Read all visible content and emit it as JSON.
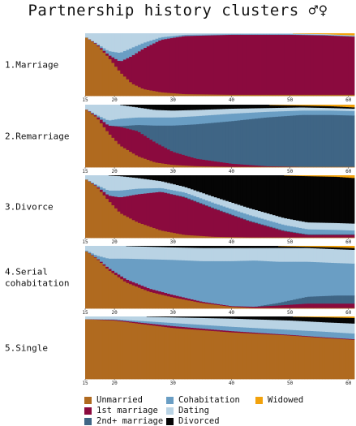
{
  "title": "Partnership history clusters ♂♀",
  "colors": {
    "unmarried": "#b06a1f",
    "first_marriage": "#8b0a3e",
    "second_marriage": "#3f6585",
    "cohabitation": "#6a9ec4",
    "dating": "#b9d3e4",
    "divorced": "#050505",
    "widowed": "#f2a20c"
  },
  "legend": [
    {
      "key": "unmarried",
      "label": "Unmarried"
    },
    {
      "key": "cohabitation",
      "label": "Cohabitation"
    },
    {
      "key": "widowed",
      "label": "Widowed"
    },
    {
      "key": "first_marriage",
      "label": "1st marriage"
    },
    {
      "key": "dating",
      "label": "Dating"
    },
    {
      "key": "second_marriage",
      "label": "2nd+ marriage"
    },
    {
      "key": "divorced",
      "label": "Divorced"
    }
  ],
  "chart_data": {
    "type": "area",
    "subtype": "stacked-proportion",
    "x_range": [
      15,
      61
    ],
    "x_ticks": [
      15,
      20,
      30,
      40,
      50,
      60
    ],
    "y_range": [
      0,
      1
    ],
    "stack_order": [
      "unmarried",
      "first_marriage",
      "second_marriage",
      "cohabitation",
      "dating",
      "divorced",
      "widowed"
    ],
    "panels": [
      {
        "label": "1.Marriage",
        "points": [
          {
            "age": 15,
            "unmarried": 0.95,
            "first_marriage": 0.0,
            "second_marriage": 0.0,
            "cohabitation": 0.0,
            "dating": 0.05,
            "divorced": 0.0,
            "widowed": 0.0
          },
          {
            "age": 17,
            "unmarried": 0.82,
            "first_marriage": 0.01,
            "second_marriage": 0.0,
            "cohabitation": 0.01,
            "dating": 0.16,
            "divorced": 0.0,
            "widowed": 0.0
          },
          {
            "age": 19,
            "unmarried": 0.62,
            "first_marriage": 0.04,
            "second_marriage": 0.0,
            "cohabitation": 0.06,
            "dating": 0.28,
            "divorced": 0.0,
            "widowed": 0.0
          },
          {
            "age": 21,
            "unmarried": 0.38,
            "first_marriage": 0.17,
            "second_marriage": 0.0,
            "cohabitation": 0.14,
            "dating": 0.31,
            "divorced": 0.0,
            "widowed": 0.0
          },
          {
            "age": 23,
            "unmarried": 0.2,
            "first_marriage": 0.44,
            "second_marriage": 0.0,
            "cohabitation": 0.13,
            "dating": 0.23,
            "divorced": 0.0,
            "widowed": 0.0
          },
          {
            "age": 25,
            "unmarried": 0.11,
            "first_marriage": 0.65,
            "second_marriage": 0.0,
            "cohabitation": 0.09,
            "dating": 0.15,
            "divorced": 0.0,
            "widowed": 0.0
          },
          {
            "age": 28,
            "unmarried": 0.06,
            "first_marriage": 0.84,
            "second_marriage": 0.0,
            "cohabitation": 0.04,
            "dating": 0.06,
            "divorced": 0.0,
            "widowed": 0.0
          },
          {
            "age": 32,
            "unmarried": 0.03,
            "first_marriage": 0.93,
            "second_marriage": 0.0,
            "cohabitation": 0.02,
            "dating": 0.02,
            "divorced": 0.0,
            "widowed": 0.0
          },
          {
            "age": 40,
            "unmarried": 0.02,
            "first_marriage": 0.96,
            "second_marriage": 0.0,
            "cohabitation": 0.01,
            "dating": 0.01,
            "divorced": 0.0,
            "widowed": 0.0
          },
          {
            "age": 50,
            "unmarried": 0.02,
            "first_marriage": 0.96,
            "second_marriage": 0.0,
            "cohabitation": 0.01,
            "dating": 0.01,
            "divorced": 0.0,
            "widowed": 0.0
          },
          {
            "age": 56,
            "unmarried": 0.02,
            "first_marriage": 0.95,
            "second_marriage": 0.0,
            "cohabitation": 0.01,
            "dating": 0.01,
            "divorced": 0.0,
            "widowed": 0.01
          },
          {
            "age": 61,
            "unmarried": 0.02,
            "first_marriage": 0.93,
            "second_marriage": 0.0,
            "cohabitation": 0.01,
            "dating": 0.01,
            "divorced": 0.0,
            "widowed": 0.03
          }
        ]
      },
      {
        "label": "2.Remarriage",
        "points": [
          {
            "age": 15,
            "unmarried": 0.94,
            "first_marriage": 0.0,
            "second_marriage": 0.0,
            "cohabitation": 0.0,
            "dating": 0.06,
            "divorced": 0.0,
            "widowed": 0.0
          },
          {
            "age": 17,
            "unmarried": 0.8,
            "first_marriage": 0.02,
            "second_marriage": 0.0,
            "cohabitation": 0.02,
            "dating": 0.16,
            "divorced": 0.0,
            "widowed": 0.0
          },
          {
            "age": 19,
            "unmarried": 0.55,
            "first_marriage": 0.12,
            "second_marriage": 0.0,
            "cohabitation": 0.08,
            "dating": 0.25,
            "divorced": 0.0,
            "widowed": 0.0
          },
          {
            "age": 21,
            "unmarried": 0.35,
            "first_marriage": 0.3,
            "second_marriage": 0.01,
            "cohabitation": 0.12,
            "dating": 0.22,
            "divorced": 0.0,
            "widowed": 0.0
          },
          {
            "age": 24,
            "unmarried": 0.18,
            "first_marriage": 0.4,
            "second_marriage": 0.1,
            "cohabitation": 0.12,
            "dating": 0.16,
            "divorced": 0.04,
            "widowed": 0.0
          },
          {
            "age": 27,
            "unmarried": 0.08,
            "first_marriage": 0.32,
            "second_marriage": 0.27,
            "cohabitation": 0.13,
            "dating": 0.12,
            "divorced": 0.08,
            "widowed": 0.0
          },
          {
            "age": 30,
            "unmarried": 0.04,
            "first_marriage": 0.21,
            "second_marriage": 0.42,
            "cohabitation": 0.13,
            "dating": 0.11,
            "divorced": 0.09,
            "widowed": 0.0
          },
          {
            "age": 34,
            "unmarried": 0.02,
            "first_marriage": 0.12,
            "second_marriage": 0.55,
            "cohabitation": 0.13,
            "dating": 0.1,
            "divorced": 0.08,
            "widowed": 0.0
          },
          {
            "age": 40,
            "unmarried": 0.01,
            "first_marriage": 0.05,
            "second_marriage": 0.68,
            "cohabitation": 0.12,
            "dating": 0.08,
            "divorced": 0.06,
            "widowed": 0.0
          },
          {
            "age": 46,
            "unmarried": 0.01,
            "first_marriage": 0.01,
            "second_marriage": 0.78,
            "cohabitation": 0.09,
            "dating": 0.06,
            "divorced": 0.05,
            "widowed": 0.0
          },
          {
            "age": 52,
            "unmarried": 0.01,
            "first_marriage": 0.0,
            "second_marriage": 0.83,
            "cohabitation": 0.07,
            "dating": 0.05,
            "divorced": 0.03,
            "widowed": 0.01
          },
          {
            "age": 57,
            "unmarried": 0.01,
            "first_marriage": 0.0,
            "second_marriage": 0.83,
            "cohabitation": 0.07,
            "dating": 0.04,
            "divorced": 0.03,
            "widowed": 0.02
          },
          {
            "age": 61,
            "unmarried": 0.01,
            "first_marriage": 0.0,
            "second_marriage": 0.82,
            "cohabitation": 0.07,
            "dating": 0.04,
            "divorced": 0.02,
            "widowed": 0.04
          }
        ]
      },
      {
        "label": "3.Divorce",
        "points": [
          {
            "age": 15,
            "unmarried": 0.95,
            "first_marriage": 0.0,
            "second_marriage": 0.0,
            "cohabitation": 0.0,
            "dating": 0.05,
            "divorced": 0.0,
            "widowed": 0.0
          },
          {
            "age": 17,
            "unmarried": 0.82,
            "first_marriage": 0.01,
            "second_marriage": 0.0,
            "cohabitation": 0.02,
            "dating": 0.15,
            "divorced": 0.0,
            "widowed": 0.0
          },
          {
            "age": 19,
            "unmarried": 0.6,
            "first_marriage": 0.08,
            "second_marriage": 0.0,
            "cohabitation": 0.08,
            "dating": 0.24,
            "divorced": 0.0,
            "widowed": 0.0
          },
          {
            "age": 21,
            "unmarried": 0.4,
            "first_marriage": 0.25,
            "second_marriage": 0.0,
            "cohabitation": 0.11,
            "dating": 0.23,
            "divorced": 0.01,
            "widowed": 0.0
          },
          {
            "age": 24,
            "unmarried": 0.25,
            "first_marriage": 0.45,
            "second_marriage": 0.0,
            "cohabitation": 0.09,
            "dating": 0.17,
            "divorced": 0.04,
            "widowed": 0.0
          },
          {
            "age": 28,
            "unmarried": 0.12,
            "first_marriage": 0.62,
            "second_marriage": 0.0,
            "cohabitation": 0.06,
            "dating": 0.11,
            "divorced": 0.09,
            "widowed": 0.0
          },
          {
            "age": 32,
            "unmarried": 0.05,
            "first_marriage": 0.6,
            "second_marriage": 0.01,
            "cohabitation": 0.07,
            "dating": 0.09,
            "divorced": 0.18,
            "widowed": 0.0
          },
          {
            "age": 37,
            "unmarried": 0.02,
            "first_marriage": 0.45,
            "second_marriage": 0.01,
            "cohabitation": 0.08,
            "dating": 0.1,
            "divorced": 0.34,
            "widowed": 0.0
          },
          {
            "age": 43,
            "unmarried": 0.01,
            "first_marriage": 0.26,
            "second_marriage": 0.01,
            "cohabitation": 0.09,
            "dating": 0.11,
            "divorced": 0.52,
            "widowed": 0.0
          },
          {
            "age": 49,
            "unmarried": 0.01,
            "first_marriage": 0.1,
            "second_marriage": 0.01,
            "cohabitation": 0.09,
            "dating": 0.11,
            "divorced": 0.68,
            "widowed": 0.0
          },
          {
            "age": 53,
            "unmarried": 0.01,
            "first_marriage": 0.04,
            "second_marriage": 0.01,
            "cohabitation": 0.08,
            "dating": 0.11,
            "divorced": 0.74,
            "widowed": 0.01
          },
          {
            "age": 58,
            "unmarried": 0.01,
            "first_marriage": 0.04,
            "second_marriage": 0.01,
            "cohabitation": 0.07,
            "dating": 0.11,
            "divorced": 0.74,
            "widowed": 0.02
          },
          {
            "age": 61,
            "unmarried": 0.01,
            "first_marriage": 0.04,
            "second_marriage": 0.01,
            "cohabitation": 0.06,
            "dating": 0.11,
            "divorced": 0.73,
            "widowed": 0.04
          }
        ]
      },
      {
        "label": "4.Serial\ncohabitation",
        "points": [
          {
            "age": 15,
            "unmarried": 0.93,
            "first_marriage": 0.0,
            "second_marriage": 0.0,
            "cohabitation": 0.01,
            "dating": 0.06,
            "divorced": 0.0,
            "widowed": 0.0
          },
          {
            "age": 17,
            "unmarried": 0.8,
            "first_marriage": 0.01,
            "second_marriage": 0.0,
            "cohabitation": 0.04,
            "dating": 0.15,
            "divorced": 0.0,
            "widowed": 0.0
          },
          {
            "age": 19,
            "unmarried": 0.62,
            "first_marriage": 0.03,
            "second_marriage": 0.0,
            "cohabitation": 0.15,
            "dating": 0.2,
            "divorced": 0.0,
            "widowed": 0.0
          },
          {
            "age": 22,
            "unmarried": 0.42,
            "first_marriage": 0.05,
            "second_marriage": 0.0,
            "cohabitation": 0.33,
            "dating": 0.2,
            "divorced": 0.0,
            "widowed": 0.0
          },
          {
            "age": 26,
            "unmarried": 0.27,
            "first_marriage": 0.05,
            "second_marriage": 0.0,
            "cohabitation": 0.47,
            "dating": 0.2,
            "divorced": 0.01,
            "widowed": 0.0
          },
          {
            "age": 30,
            "unmarried": 0.18,
            "first_marriage": 0.04,
            "second_marriage": 0.0,
            "cohabitation": 0.56,
            "dating": 0.2,
            "divorced": 0.02,
            "widowed": 0.0
          },
          {
            "age": 35,
            "unmarried": 0.09,
            "first_marriage": 0.02,
            "second_marriage": 0.0,
            "cohabitation": 0.65,
            "dating": 0.21,
            "divorced": 0.03,
            "widowed": 0.0
          },
          {
            "age": 40,
            "unmarried": 0.03,
            "first_marriage": 0.01,
            "second_marriage": 0.0,
            "cohabitation": 0.72,
            "dating": 0.21,
            "divorced": 0.03,
            "widowed": 0.0
          },
          {
            "age": 44,
            "unmarried": 0.01,
            "first_marriage": 0.02,
            "second_marriage": 0.0,
            "cohabitation": 0.74,
            "dating": 0.2,
            "divorced": 0.03,
            "widowed": 0.0
          },
          {
            "age": 48,
            "unmarried": 0.01,
            "first_marriage": 0.04,
            "second_marriage": 0.04,
            "cohabitation": 0.66,
            "dating": 0.22,
            "divorced": 0.03,
            "widowed": 0.0
          },
          {
            "age": 53,
            "unmarried": 0.01,
            "first_marriage": 0.07,
            "second_marriage": 0.11,
            "cohabitation": 0.56,
            "dating": 0.22,
            "divorced": 0.02,
            "widowed": 0.01
          },
          {
            "age": 58,
            "unmarried": 0.01,
            "first_marriage": 0.07,
            "second_marriage": 0.13,
            "cohabitation": 0.52,
            "dating": 0.22,
            "divorced": 0.03,
            "widowed": 0.02
          },
          {
            "age": 61,
            "unmarried": 0.01,
            "first_marriage": 0.07,
            "second_marriage": 0.13,
            "cohabitation": 0.51,
            "dating": 0.22,
            "divorced": 0.03,
            "widowed": 0.03
          }
        ]
      },
      {
        "label": "5.Single",
        "points": [
          {
            "age": 15,
            "unmarried": 0.96,
            "first_marriage": 0.0,
            "second_marriage": 0.0,
            "cohabitation": 0.0,
            "dating": 0.04,
            "divorced": 0.0,
            "widowed": 0.0
          },
          {
            "age": 20,
            "unmarried": 0.94,
            "first_marriage": 0.01,
            "second_marriage": 0.0,
            "cohabitation": 0.01,
            "dating": 0.04,
            "divorced": 0.0,
            "widowed": 0.0
          },
          {
            "age": 25,
            "unmarried": 0.88,
            "first_marriage": 0.02,
            "second_marriage": 0.0,
            "cohabitation": 0.03,
            "dating": 0.07,
            "divorced": 0.0,
            "widowed": 0.0
          },
          {
            "age": 30,
            "unmarried": 0.82,
            "first_marriage": 0.03,
            "second_marriage": 0.0,
            "cohabitation": 0.05,
            "dating": 0.09,
            "divorced": 0.01,
            "widowed": 0.0
          },
          {
            "age": 40,
            "unmarried": 0.75,
            "first_marriage": 0.02,
            "second_marriage": 0.0,
            "cohabitation": 0.07,
            "dating": 0.13,
            "divorced": 0.03,
            "widowed": 0.0
          },
          {
            "age": 50,
            "unmarried": 0.7,
            "first_marriage": 0.01,
            "second_marriage": 0.0,
            "cohabitation": 0.08,
            "dating": 0.15,
            "divorced": 0.06,
            "widowed": 0.0
          },
          {
            "age": 56,
            "unmarried": 0.66,
            "first_marriage": 0.01,
            "second_marriage": 0.0,
            "cohabitation": 0.09,
            "dating": 0.15,
            "divorced": 0.08,
            "widowed": 0.01
          },
          {
            "age": 61,
            "unmarried": 0.63,
            "first_marriage": 0.01,
            "second_marriage": 0.0,
            "cohabitation": 0.09,
            "dating": 0.16,
            "divorced": 0.09,
            "widowed": 0.02
          }
        ]
      }
    ]
  }
}
